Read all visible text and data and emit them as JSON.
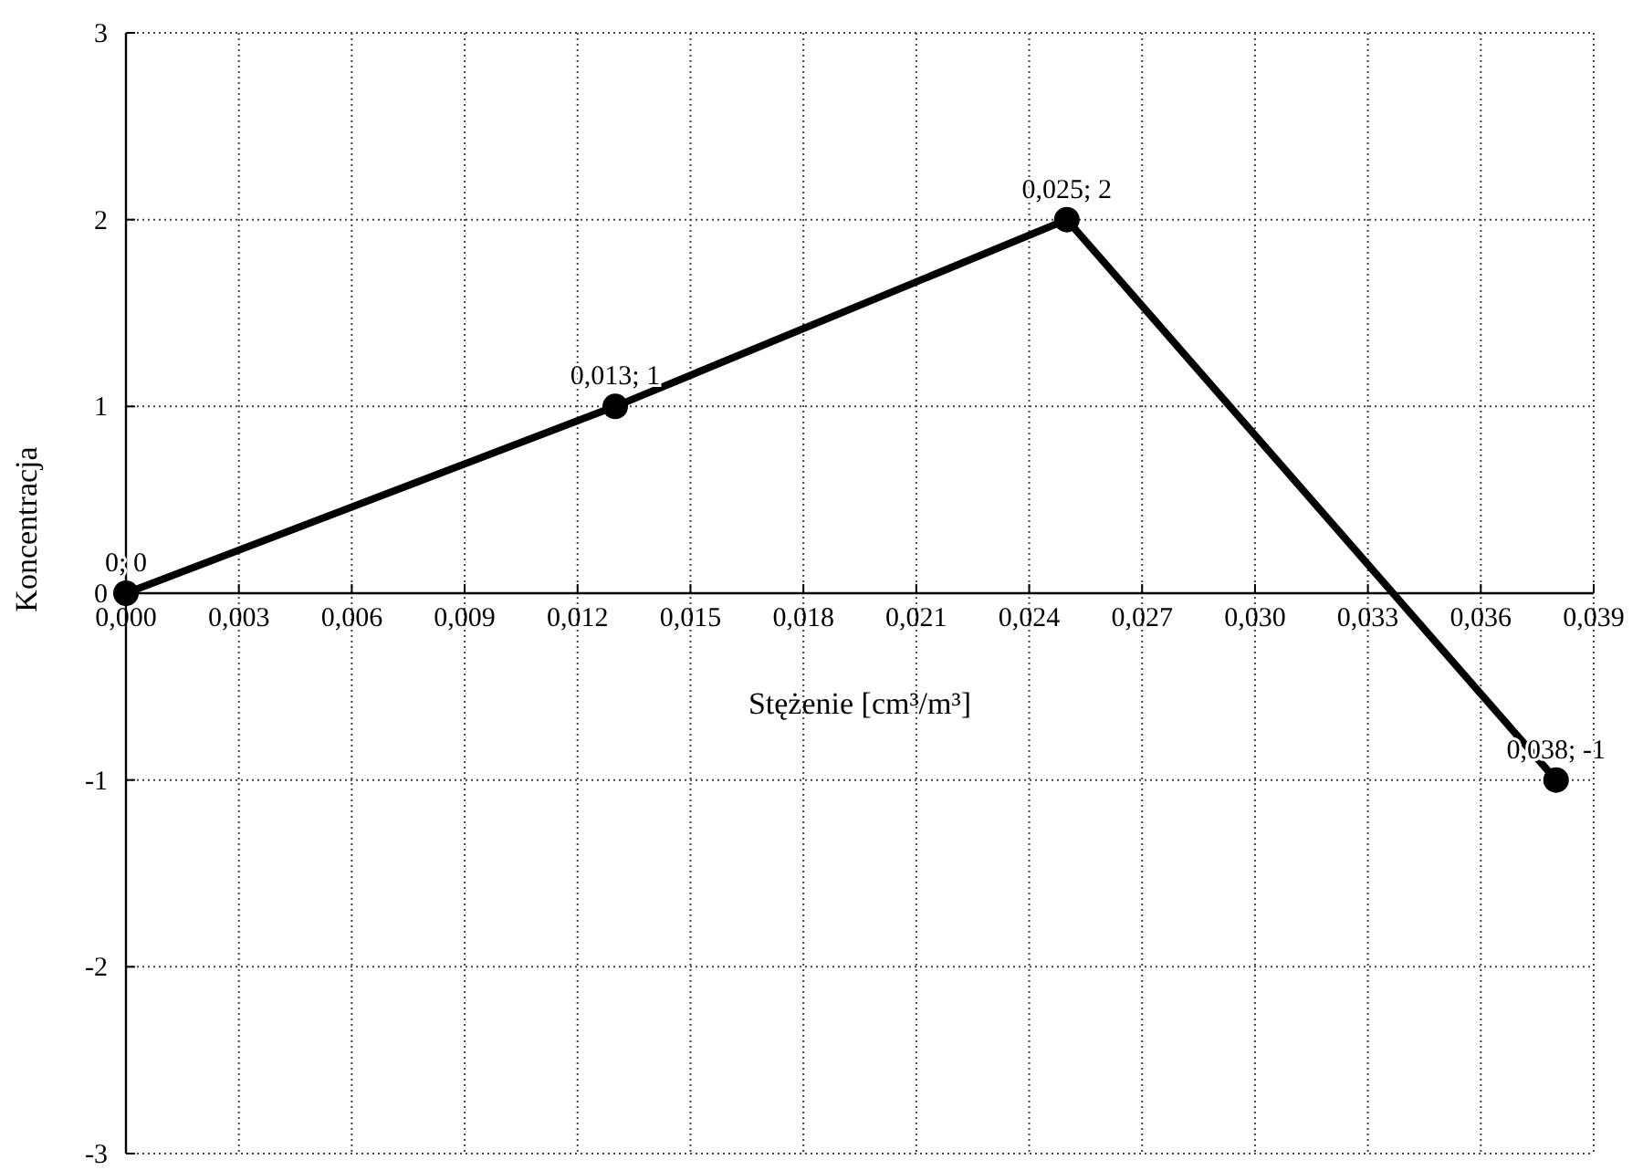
{
  "chart_data": {
    "type": "line",
    "xlabel": "Stężenie [cm³/m³]",
    "ylabel": "Koncentracja",
    "x": [
      0,
      0.013,
      0.025,
      0.038
    ],
    "series": [
      {
        "color": "#000000",
        "values": [
          0,
          1,
          2,
          -1
        ]
      }
    ],
    "marker": "circle",
    "line_style": "solid",
    "grid": true,
    "xlim": [
      0,
      0.039
    ],
    "xticks": [
      {
        "value": 0,
        "label": "0,000"
      },
      {
        "value": 0.003,
        "label": "0,003"
      },
      {
        "value": 0.006,
        "label": "0,006"
      },
      {
        "value": 0.009,
        "label": "0,009"
      },
      {
        "value": 0.012,
        "label": "0,012"
      },
      {
        "value": 0.015,
        "label": "0,015"
      },
      {
        "value": 0.018,
        "label": "0,018"
      },
      {
        "value": 0.021,
        "label": "0,021"
      },
      {
        "value": 0.024,
        "label": "0,024"
      },
      {
        "value": 0.027,
        "label": "0,027"
      },
      {
        "value": 0.03,
        "label": "0,030"
      },
      {
        "value": 0.033,
        "label": "0,033"
      },
      {
        "value": 0.036,
        "label": "0,036"
      },
      {
        "value": 0.039,
        "label": "0,039"
      }
    ],
    "ylim": [
      -3,
      3
    ],
    "yticks": [
      -3,
      -2,
      -1,
      0,
      1,
      2,
      3
    ],
    "annotations": [
      {
        "text": "0; 0",
        "x": 0,
        "y": 0
      },
      {
        "text": "0,013; 1",
        "x": 0.013,
        "y": 1
      },
      {
        "text": "0,025; 2",
        "x": 0.025,
        "y": 2
      },
      {
        "text": "0,038; -1",
        "x": 0.038,
        "y": -1
      }
    ]
  }
}
